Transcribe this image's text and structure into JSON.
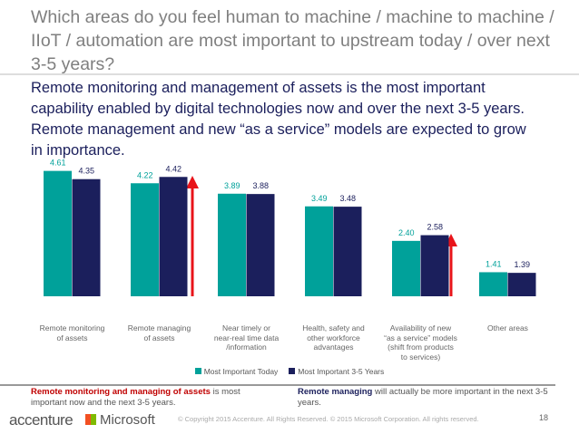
{
  "header": {
    "title": "Which areas do you feel human to machine / machine to machine / IIoT / automation are most important to upstream today / over next 3-5 years?",
    "subtitle": "Remote monitoring and management of assets is the most important capability enabled by digital technologies now and over the next 3-5 years. Remote management and new “as a service” models are expected to grow in importance."
  },
  "chart_data": {
    "type": "bar",
    "categories": [
      "Remote monitoring\nof assets",
      "Remote managing\nof assets",
      "Near timely or\nnear-real time data\n/information",
      "Health, safety and\nother workforce\nadvantages",
      "Availability of new\n“as a service” models\n(shift from products\nto services)",
      "Other areas"
    ],
    "series": [
      {
        "name": "Most Important Today",
        "color": "#00a19a",
        "values": [
          4.61,
          4.22,
          3.89,
          3.49,
          2.4,
          1.41
        ],
        "value_labels": [
          "4.61",
          "4.22",
          "3.89",
          "3.49",
          "2.40",
          "1.41"
        ]
      },
      {
        "name": "Most Important 3-5 Years",
        "color": "#1b1f5c",
        "values": [
          4.35,
          4.42,
          3.88,
          3.48,
          2.58,
          1.39
        ],
        "value_labels": [
          "4.35",
          "4.42",
          "3.88",
          "3.48",
          "2.58",
          "1.39"
        ]
      }
    ],
    "ylim": [
      0.65,
      5
    ],
    "legend": "bottom"
  },
  "notes": [
    {
      "bold": "Remote monitoring and managing of assets",
      "text": " is most important now and the next 3-5 years."
    },
    {
      "bold": "Remote managing",
      "text": " will actually be more important in the next 3-5 years."
    }
  ],
  "footer": {
    "logo1": "accenture",
    "logo2": "Microsoft",
    "copyright": "© Copyright 2015 Accenture. All Rights Reserved. © 2015 Microsoft Corporation. All rights reserved.",
    "page": "18"
  }
}
